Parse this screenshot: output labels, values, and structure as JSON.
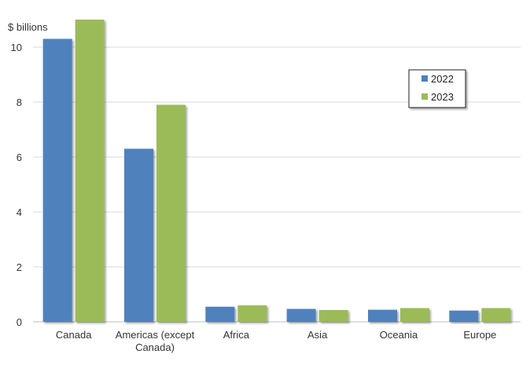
{
  "chart_data": {
    "type": "bar",
    "unit_label": "$ billions",
    "categories": [
      [
        "Canada"
      ],
      [
        "Americas (except",
        "Canada)"
      ],
      [
        "Africa"
      ],
      [
        "Asia"
      ],
      [
        "Oceania"
      ],
      [
        "Europe"
      ]
    ],
    "series": [
      {
        "name": "2022",
        "color": "#4f81bd",
        "values": [
          10.3,
          6.3,
          0.55,
          0.47,
          0.44,
          0.41
        ]
      },
      {
        "name": "2023",
        "color": "#9bbb59",
        "values": [
          11.0,
          7.9,
          0.6,
          0.43,
          0.5,
          0.5
        ]
      }
    ],
    "ylim": [
      0,
      11
    ],
    "yticks": [
      0,
      2,
      4,
      6,
      8,
      10
    ],
    "grid": true,
    "legend_position": "top-right"
  }
}
